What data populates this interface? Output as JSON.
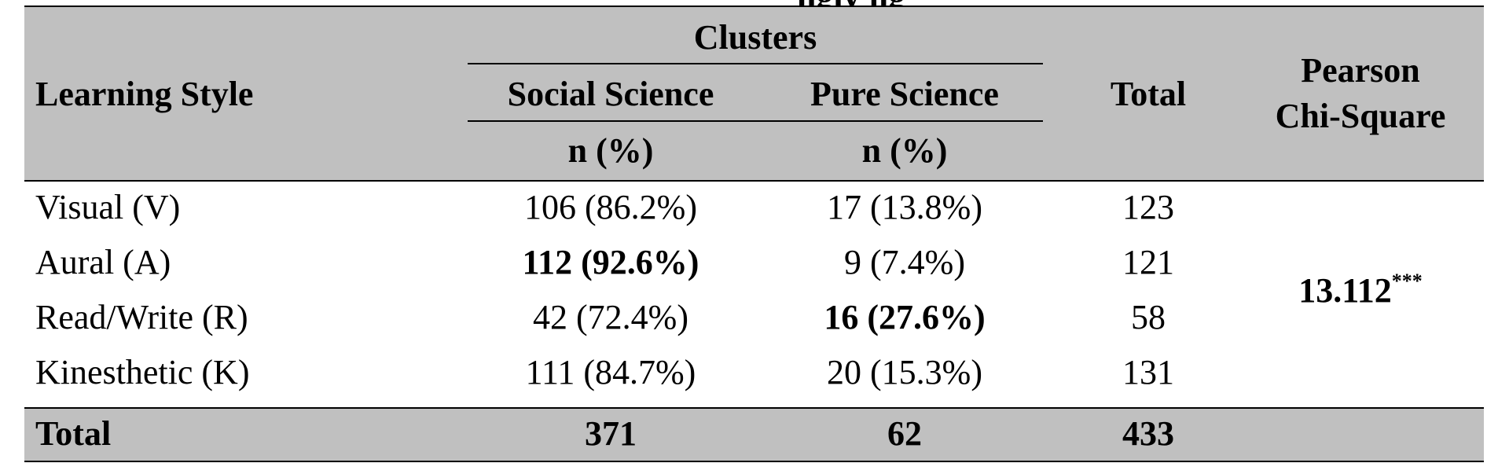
{
  "clipped_title": "ngly    ng",
  "headers": {
    "learning_style": "Learning Style",
    "clusters": "Clusters",
    "social_science": "Social Science",
    "pure_science": "Pure Science",
    "n_pct_1": "n (%)",
    "n_pct_2": "n (%)",
    "total": "Total",
    "pearson_line1": "Pearson",
    "pearson_line2": "Chi-Square"
  },
  "rows": [
    {
      "style": "Visual (V)",
      "social": "106 (86.2%)",
      "pure": "17 (13.8%)",
      "total": "123"
    },
    {
      "style": "Aural (A)",
      "social": "112 (92.6%)",
      "pure": "9 (7.4%)",
      "total": "121"
    },
    {
      "style": "Read/Write (R)",
      "social": "42 (72.4%)",
      "pure": "16 (27.6%)",
      "total": "58"
    },
    {
      "style": "Kinesthetic (K)",
      "social": "111 (84.7%)",
      "pure": "20 (15.3%)",
      "total": "131"
    }
  ],
  "pearson": {
    "value": "13.112",
    "significance": "***"
  },
  "totals": {
    "label": "Total",
    "social": "371",
    "pure": "62",
    "total": "433"
  }
}
